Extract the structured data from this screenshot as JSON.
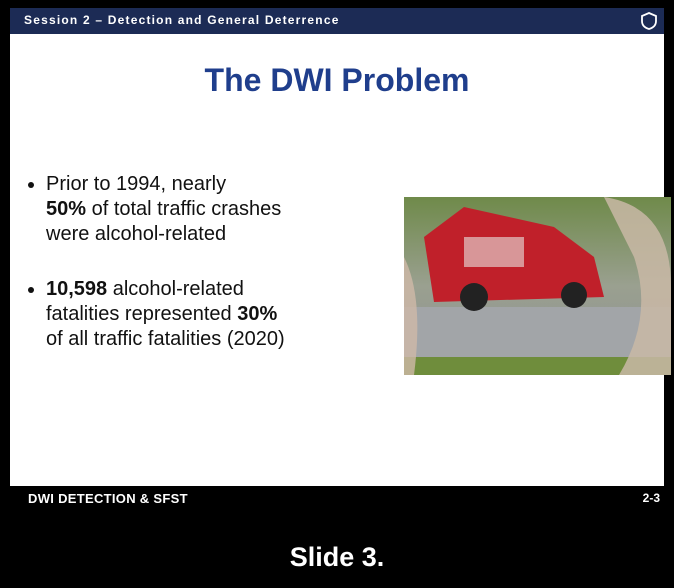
{
  "header": {
    "session": "Session 2 – Detection and General Deterrence"
  },
  "title": "The DWI Problem",
  "bullets": [
    [
      [
        "Prior to 1994, nearly"
      ],
      [
        "50%",
        " of total traffic crashes"
      ],
      [
        "were alcohol-related"
      ]
    ],
    [
      [
        "10,598",
        " alcohol-related"
      ],
      [
        "fatalities represented ",
        "30%"
      ],
      [
        "of all traffic fatalities (2020)"
      ]
    ]
  ],
  "footer": {
    "left": "DWI DETECTION & SFST",
    "right": "2-3"
  },
  "caption": "Slide 3."
}
